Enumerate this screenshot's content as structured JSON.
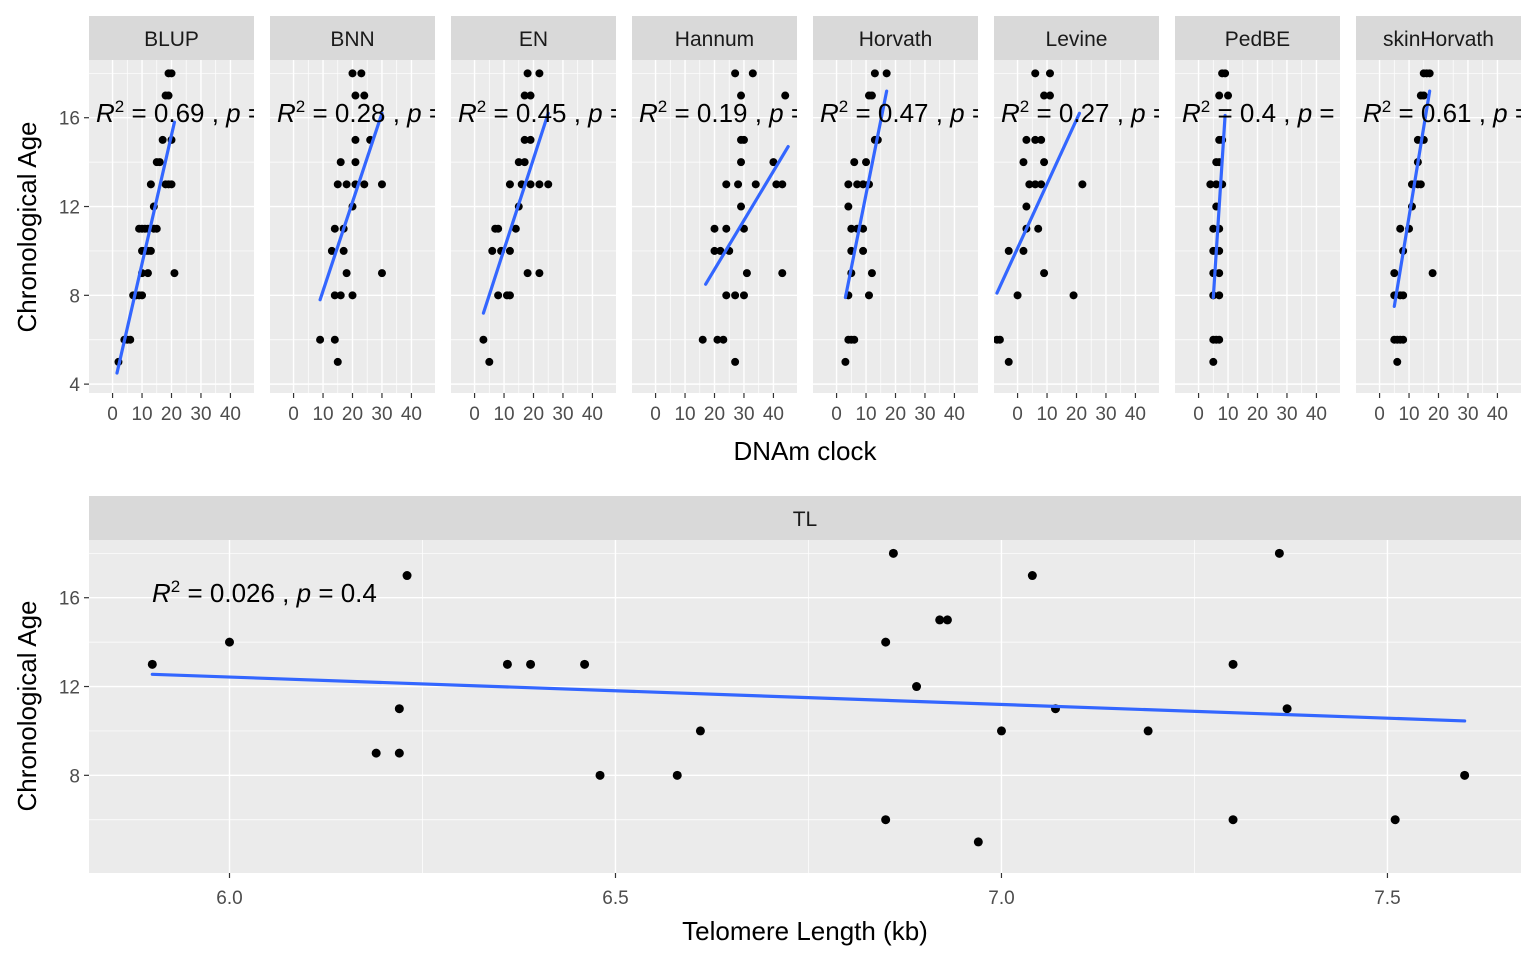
{
  "chart_data": [
    {
      "type": "scatter",
      "xlabel": "DNAm clock",
      "ylabel": "Chronological Age",
      "x_ticks": [
        0,
        10,
        20,
        30,
        40
      ],
      "y_ticks": [
        4,
        8,
        12,
        16
      ],
      "xlim": [
        -8,
        48
      ],
      "ylim": [
        3.6,
        18.6
      ],
      "grid": true,
      "trend_color": "#3366FF",
      "point_color": "#000000",
      "panel_bg": "#EBEBEB",
      "strip_bg": "#D9D9D9",
      "panels": [
        {
          "name": "BLUP",
          "annotation": {
            "r2": "0.69",
            "p": ""
          },
          "points": [
            [
              2,
              5
            ],
            [
              4,
              6
            ],
            [
              5,
              6
            ],
            [
              6,
              6
            ],
            [
              7,
              8
            ],
            [
              8,
              8
            ],
            [
              9,
              8
            ],
            [
              10,
              8
            ],
            [
              10,
              10
            ],
            [
              11,
              10
            ],
            [
              12,
              10
            ],
            [
              13,
              10
            ],
            [
              9,
              11
            ],
            [
              10,
              11
            ],
            [
              11,
              11
            ],
            [
              12,
              11
            ],
            [
              14,
              11
            ],
            [
              15,
              11
            ],
            [
              10,
              9
            ],
            [
              12,
              9
            ],
            [
              14,
              12
            ],
            [
              13,
              13
            ],
            [
              18,
              13
            ],
            [
              19,
              13
            ],
            [
              20,
              13
            ],
            [
              15,
              14
            ],
            [
              16,
              14
            ],
            [
              17,
              15
            ],
            [
              20,
              15
            ],
            [
              18,
              17
            ],
            [
              19,
              17
            ],
            [
              19,
              18
            ],
            [
              20,
              18
            ],
            [
              21,
              9
            ]
          ],
          "fit": [
            [
              1.5,
              4.5
            ],
            [
              21,
              15.8
            ]
          ]
        },
        {
          "name": "BNN",
          "annotation": {
            "r2": "0.28",
            "p": ""
          },
          "points": [
            [
              9,
              6
            ],
            [
              14,
              6
            ],
            [
              15,
              5
            ],
            [
              14,
              8
            ],
            [
              16,
              8
            ],
            [
              20,
              8
            ],
            [
              13,
              10
            ],
            [
              17,
              10
            ],
            [
              18,
              9
            ],
            [
              14,
              11
            ],
            [
              17,
              11
            ],
            [
              20,
              12
            ],
            [
              15,
              13
            ],
            [
              18,
              13
            ],
            [
              21,
              13
            ],
            [
              24,
              13
            ],
            [
              30,
              13
            ],
            [
              16,
              14
            ],
            [
              21,
              14
            ],
            [
              21,
              15
            ],
            [
              26,
              15
            ],
            [
              21,
              17
            ],
            [
              24,
              17
            ],
            [
              20,
              18
            ],
            [
              23,
              18
            ],
            [
              30,
              9
            ]
          ],
          "fit": [
            [
              9,
              7.8
            ],
            [
              30,
              16.2
            ]
          ]
        },
        {
          "name": "EN",
          "annotation": {
            "r2": "0.45",
            "p": ""
          },
          "points": [
            [
              3,
              6
            ],
            [
              5,
              5
            ],
            [
              8,
              8
            ],
            [
              11,
              8
            ],
            [
              12,
              8
            ],
            [
              6,
              10
            ],
            [
              9,
              10
            ],
            [
              12,
              10
            ],
            [
              7,
              11
            ],
            [
              8,
              11
            ],
            [
              14,
              11
            ],
            [
              15,
              12
            ],
            [
              12,
              13
            ],
            [
              16,
              13
            ],
            [
              19,
              13
            ],
            [
              22,
              13
            ],
            [
              25,
              13
            ],
            [
              15,
              14
            ],
            [
              17,
              14
            ],
            [
              17,
              15
            ],
            [
              19,
              15
            ],
            [
              17,
              17
            ],
            [
              19,
              17
            ],
            [
              18,
              9
            ],
            [
              22,
              9
            ],
            [
              18,
              18
            ],
            [
              22,
              18
            ]
          ],
          "fit": [
            [
              3,
              7.2
            ],
            [
              25,
              16.2
            ]
          ]
        },
        {
          "name": "Hannum",
          "annotation": {
            "r2": "0.19",
            "p": ""
          },
          "points": [
            [
              16,
              6
            ],
            [
              21,
              6
            ],
            [
              23,
              6
            ],
            [
              27,
              5
            ],
            [
              24,
              8
            ],
            [
              27,
              8
            ],
            [
              30,
              8
            ],
            [
              20,
              10
            ],
            [
              22,
              10
            ],
            [
              25,
              10
            ],
            [
              20,
              11
            ],
            [
              24,
              11
            ],
            [
              30,
              11
            ],
            [
              29,
              12
            ],
            [
              24,
              13
            ],
            [
              28,
              13
            ],
            [
              34,
              13
            ],
            [
              41,
              13
            ],
            [
              43,
              13
            ],
            [
              29,
              14
            ],
            [
              40,
              14
            ],
            [
              29,
              15
            ],
            [
              30,
              15
            ],
            [
              29,
              17
            ],
            [
              44,
              17
            ],
            [
              27,
              18
            ],
            [
              33,
              18
            ],
            [
              31,
              9
            ],
            [
              43,
              9
            ]
          ],
          "fit": [
            [
              17,
              8.5
            ],
            [
              45,
              14.7
            ]
          ]
        },
        {
          "name": "Horvath",
          "annotation": {
            "r2": "0.47",
            "p": ""
          },
          "points": [
            [
              3,
              5
            ],
            [
              4,
              6
            ],
            [
              5,
              6
            ],
            [
              6,
              6
            ],
            [
              4,
              8
            ],
            [
              11,
              8
            ],
            [
              5,
              10
            ],
            [
              9,
              10
            ],
            [
              7,
              11
            ],
            [
              5,
              11
            ],
            [
              9,
              11
            ],
            [
              4,
              12
            ],
            [
              4,
              13
            ],
            [
              7,
              13
            ],
            [
              9,
              13
            ],
            [
              11,
              13
            ],
            [
              6,
              14
            ],
            [
              10,
              14
            ],
            [
              13,
              15
            ],
            [
              14,
              15
            ],
            [
              11,
              17
            ],
            [
              12,
              17
            ],
            [
              13,
              18
            ],
            [
              17,
              18
            ],
            [
              12,
              9
            ],
            [
              5,
              9
            ]
          ],
          "fit": [
            [
              3,
              7.9
            ],
            [
              17,
              17.2
            ]
          ]
        },
        {
          "name": "Levine",
          "annotation": {
            "r2": "0.27",
            "p": ""
          },
          "points": [
            [
              -7,
              6
            ],
            [
              -6,
              6
            ],
            [
              -3,
              5
            ],
            [
              0,
              8
            ],
            [
              -3,
              10
            ],
            [
              2,
              10
            ],
            [
              3,
              11
            ],
            [
              7,
              11
            ],
            [
              3,
              12
            ],
            [
              4,
              13
            ],
            [
              6,
              13
            ],
            [
              8,
              13
            ],
            [
              22,
              13
            ],
            [
              2,
              14
            ],
            [
              9,
              14
            ],
            [
              3,
              15
            ],
            [
              6,
              15
            ],
            [
              8,
              15
            ],
            [
              9,
              17
            ],
            [
              11,
              17
            ],
            [
              6,
              18
            ],
            [
              11,
              18
            ],
            [
              9,
              9
            ],
            [
              19,
              8
            ]
          ],
          "fit": [
            [
              -7,
              8.1
            ],
            [
              21,
              16.2
            ]
          ]
        },
        {
          "name": "PedBE",
          "annotation": {
            "r2": "0.4",
            "p": ""
          },
          "points": [
            [
              5,
              5
            ],
            [
              5,
              6
            ],
            [
              6,
              6
            ],
            [
              7,
              6
            ],
            [
              5,
              8
            ],
            [
              7,
              8
            ],
            [
              5,
              10
            ],
            [
              6,
              10
            ],
            [
              7,
              10
            ],
            [
              5,
              11
            ],
            [
              7,
              11
            ],
            [
              6,
              12
            ],
            [
              4,
              13
            ],
            [
              6,
              13
            ],
            [
              8,
              13
            ],
            [
              6,
              14
            ],
            [
              7,
              14
            ],
            [
              7,
              15
            ],
            [
              8,
              15
            ],
            [
              7,
              17
            ],
            [
              10,
              17
            ],
            [
              8,
              18
            ],
            [
              9,
              18
            ],
            [
              5,
              9
            ],
            [
              7,
              9
            ]
          ],
          "fit": [
            [
              5,
              7.9
            ],
            [
              9,
              16.1
            ]
          ]
        },
        {
          "name": "skinHorvath",
          "annotation": {
            "r2": "0.61",
            "p": ""
          },
          "points": [
            [
              6,
              5
            ],
            [
              5,
              6
            ],
            [
              6,
              6
            ],
            [
              7,
              6
            ],
            [
              8,
              6
            ],
            [
              5,
              8
            ],
            [
              7,
              8
            ],
            [
              8,
              8
            ],
            [
              8,
              10
            ],
            [
              7,
              11
            ],
            [
              10,
              11
            ],
            [
              11,
              12
            ],
            [
              11,
              13
            ],
            [
              13,
              13
            ],
            [
              14,
              13
            ],
            [
              13,
              14
            ],
            [
              13,
              15
            ],
            [
              15,
              15
            ],
            [
              14,
              17
            ],
            [
              15,
              17
            ],
            [
              15,
              18
            ],
            [
              16,
              18
            ],
            [
              17,
              18
            ],
            [
              5,
              9
            ],
            [
              18,
              9
            ]
          ],
          "fit": [
            [
              5,
              7.5
            ],
            [
              17,
              17.2
            ]
          ]
        }
      ]
    },
    {
      "type": "scatter",
      "name": "TL",
      "xlabel": "Telomere Length (kb)",
      "ylabel": "Chronological Age",
      "x_ticks": [
        6.0,
        6.5,
        7.0,
        7.5
      ],
      "x_tick_labels": [
        "6.0",
        "6.5",
        "7.0",
        "7.5"
      ],
      "y_ticks": [
        8,
        12,
        16
      ],
      "xlim": [
        5.818,
        7.673
      ],
      "ylim": [
        3.6,
        18.6
      ],
      "grid": true,
      "annotation": {
        "r2": "0.026",
        "p": "0.4"
      },
      "points": [
        [
          5.9,
          13
        ],
        [
          6.0,
          14
        ],
        [
          6.19,
          9
        ],
        [
          6.22,
          11
        ],
        [
          6.22,
          9
        ],
        [
          6.23,
          17
        ],
        [
          6.36,
          13
        ],
        [
          6.39,
          13
        ],
        [
          6.46,
          13
        ],
        [
          6.48,
          8
        ],
        [
          6.58,
          8
        ],
        [
          6.61,
          10
        ],
        [
          6.85,
          14
        ],
        [
          6.85,
          6
        ],
        [
          6.86,
          18
        ],
        [
          6.89,
          12
        ],
        [
          6.92,
          15
        ],
        [
          6.93,
          15
        ],
        [
          6.97,
          5
        ],
        [
          7.0,
          10
        ],
        [
          7.04,
          17
        ],
        [
          7.07,
          11
        ],
        [
          7.19,
          10
        ],
        [
          7.3,
          6
        ],
        [
          7.3,
          13
        ],
        [
          7.36,
          18
        ],
        [
          7.37,
          11
        ],
        [
          7.51,
          6
        ],
        [
          7.6,
          8
        ]
      ],
      "fit": [
        [
          5.9,
          12.55
        ],
        [
          7.6,
          10.45
        ]
      ]
    }
  ]
}
